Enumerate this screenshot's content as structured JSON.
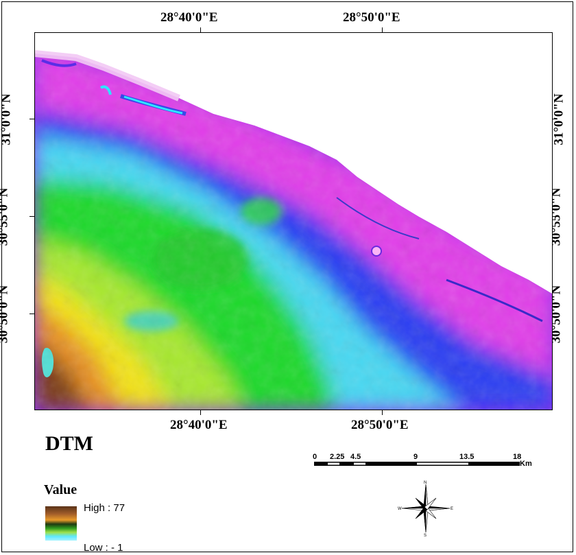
{
  "coords": {
    "top": [
      "28°40'0\"E",
      "28°50'0\"E"
    ],
    "bottom": [
      "28°40'0\"E",
      "28°50'0\"E"
    ],
    "left": [
      "31°0'0\"N",
      "30°55'0\"N",
      "30°50'0\"N"
    ],
    "right": [
      "31°0'0\"N",
      "30°55'0\"N",
      "30°50'0\"N"
    ]
  },
  "legend": {
    "title": "DTM",
    "subtitle": "Value",
    "high": "High : 77",
    "low": "Low : - 1"
  },
  "scale_bar": {
    "ticks": [
      "0",
      "2.25",
      "4.5",
      "9",
      "13.5",
      "18"
    ],
    "unit": "Km"
  },
  "north_arrow": {
    "n": "N",
    "s": "S",
    "e": "E",
    "w": "W"
  },
  "colors": {
    "high": "#5a3318",
    "mid_orange": "#e89a2a",
    "green": "#2f9a1e",
    "cyan": "#5fe8ff",
    "blue": "#2a3cf2",
    "magenta": "#e02ee6",
    "low": "#a8f4ff"
  }
}
